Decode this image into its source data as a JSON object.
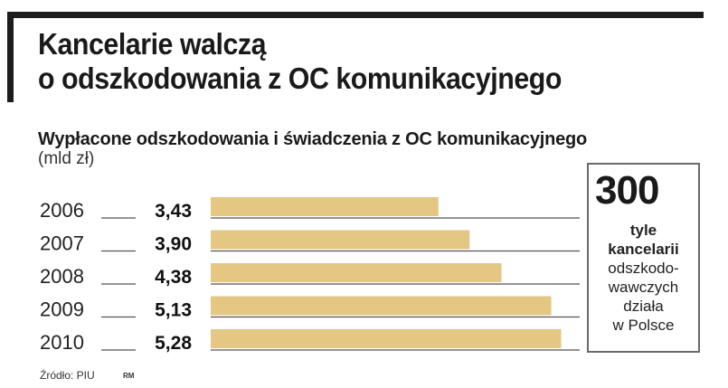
{
  "title_line1": "Kancelarie walczą",
  "title_line2": "o odszkodowania z OC komunikacyjnego",
  "chart_data": {
    "type": "bar",
    "orientation": "horizontal",
    "title": "Wypłacone odszkodowania i świadczenia z OC komunikacyjnego",
    "unit": "(mld zł)",
    "categories": [
      "2006",
      "2007",
      "2008",
      "2009",
      "2010"
    ],
    "values": [
      3.43,
      3.9,
      4.38,
      5.13,
      5.28
    ],
    "value_labels": [
      "3,43",
      "3,90",
      "4,38",
      "5,13",
      "5,28"
    ],
    "bar_color": "#e3c783",
    "grid": false,
    "legend": "none"
  },
  "callout": {
    "number": "300",
    "bold_lines": [
      "tyle",
      "kancelarii"
    ],
    "lines": [
      "odszkodo-",
      "wawczych",
      "działa",
      "w Polsce"
    ]
  },
  "source": "Źródło: PIU",
  "credit": "RM",
  "colors": {
    "frame": "#1c1c1c",
    "bar": "#e3c783",
    "callout_border": "#6a6a6a"
  }
}
